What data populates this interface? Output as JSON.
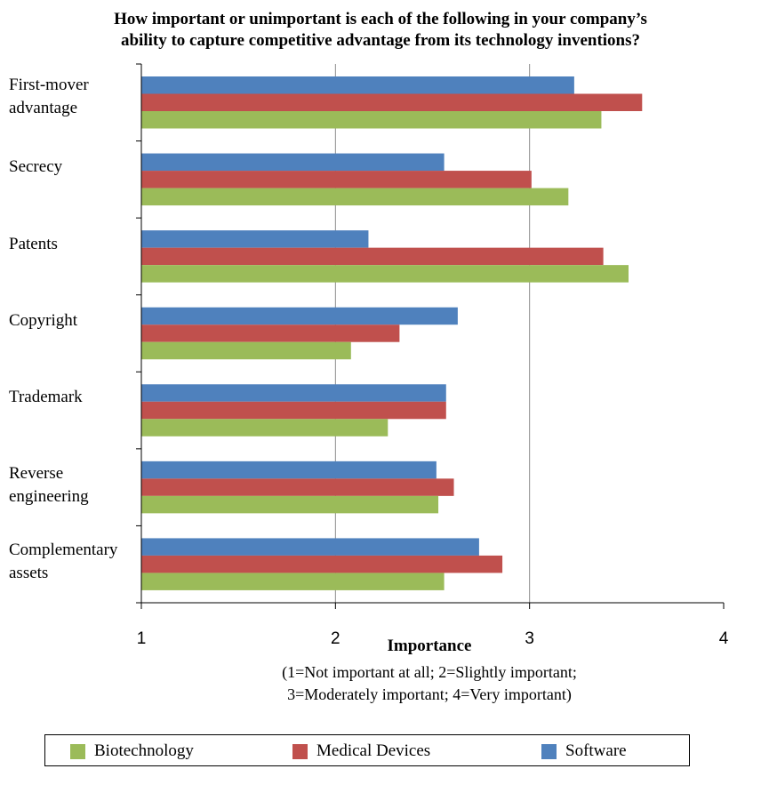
{
  "chart_data": {
    "type": "bar",
    "orientation": "horizontal",
    "title_lines": [
      "How important or unimportant is each of the following in your company’s",
      "ability to capture competitive advantage from its technology inventions?"
    ],
    "categories": [
      [
        "First-mover",
        "advantage"
      ],
      [
        "Secrecy"
      ],
      [
        "Patents"
      ],
      [
        "Copyright"
      ],
      [
        "Trademark"
      ],
      [
        "Reverse",
        "engineering"
      ],
      [
        "Complementary",
        "assets"
      ]
    ],
    "series": [
      {
        "name": "Software",
        "color": "#4F81BD",
        "values": [
          3.23,
          2.56,
          2.17,
          2.63,
          2.57,
          2.52,
          2.74
        ]
      },
      {
        "name": "Medical Devices",
        "color": "#C0504D",
        "values": [
          3.58,
          3.01,
          3.38,
          2.33,
          2.57,
          2.61,
          2.86
        ]
      },
      {
        "name": "Biotechnology",
        "color": "#9BBB59",
        "values": [
          3.37,
          3.2,
          3.51,
          2.08,
          2.27,
          2.53,
          2.56
        ]
      }
    ],
    "xlim": [
      1,
      4
    ],
    "xticks": [
      "1",
      "2",
      "3",
      "4"
    ],
    "xlabel": "Importance",
    "xlabel_note_lines": [
      "(1=Not important at all; 2=Slightly important;",
      "3=Moderately important; 4=Very important)"
    ],
    "legend": [
      {
        "name": "Biotechnology",
        "color": "#9BBB59"
      },
      {
        "name": "Medical Devices",
        "color": "#C0504D"
      },
      {
        "name": "Software",
        "color": "#4F81BD"
      }
    ],
    "legend_position": "bottom",
    "grid": true
  }
}
